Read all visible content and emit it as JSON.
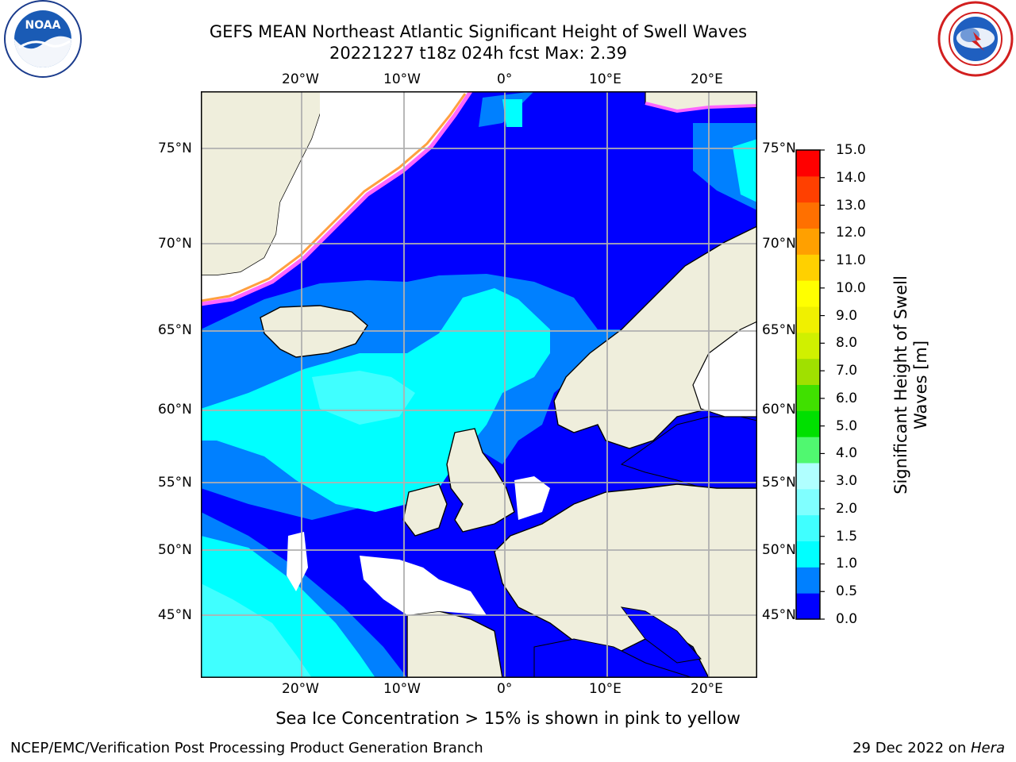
{
  "header": {
    "title_line1": "GEFS MEAN Northeast Atlantic Significant Height of Swell Waves",
    "title_line2": "20221227 t18z 024h fcst   Max: 2.39"
  },
  "logos": {
    "left": "noaa-logo",
    "left_text": "NOAA",
    "right": "national-weather-service-logo"
  },
  "map": {
    "lon_labels": [
      "20°W",
      "10°W",
      "0°",
      "10°E",
      "20°E"
    ],
    "lat_labels": [
      "75°N",
      "70°N",
      "65°N",
      "60°N",
      "55°N",
      "50°N",
      "45°N"
    ],
    "colors": {
      "land": "#efeedc",
      "no_swell": "#ffffff",
      "blue_dark": "#0000ff",
      "blue_mid": "#0080ff",
      "cyan": "#00ffff",
      "cyan_light": "#40ffff",
      "ice_pink": "#ff66ff",
      "ice_orange": "#ffa040",
      "ice_yellow": "#ffff40",
      "grid": "#b0b0b0"
    }
  },
  "colorbar": {
    "ticks": [
      "15.0",
      "14.0",
      "13.0",
      "12.0",
      "11.0",
      "10.0",
      "9.0",
      "8.0",
      "7.0",
      "6.0",
      "5.0",
      "4.0",
      "3.0",
      "2.0",
      "1.5",
      "1.0",
      "0.5",
      "0.0"
    ],
    "colors": [
      "#0000ff",
      "#0080ff",
      "#00ffff",
      "#40ffff",
      "#80ffff",
      "#b0ffff",
      "#50f870",
      "#00e000",
      "#40e000",
      "#a0e000",
      "#d0f000",
      "#f0f000",
      "#ffff00",
      "#ffd000",
      "#ffa000",
      "#ff7000",
      "#ff4000",
      "#ff0000"
    ],
    "label_line1": "Significant Height of Swell",
    "label_line2": "Waves [m]"
  },
  "footer": {
    "note": "Sea Ice Concentration > 15% is shown in pink to yellow",
    "credit": "NCEP/EMC/Verification Post Processing Product Generation Branch",
    "date": "29 Dec 2022 on ",
    "machine": "Hera"
  }
}
